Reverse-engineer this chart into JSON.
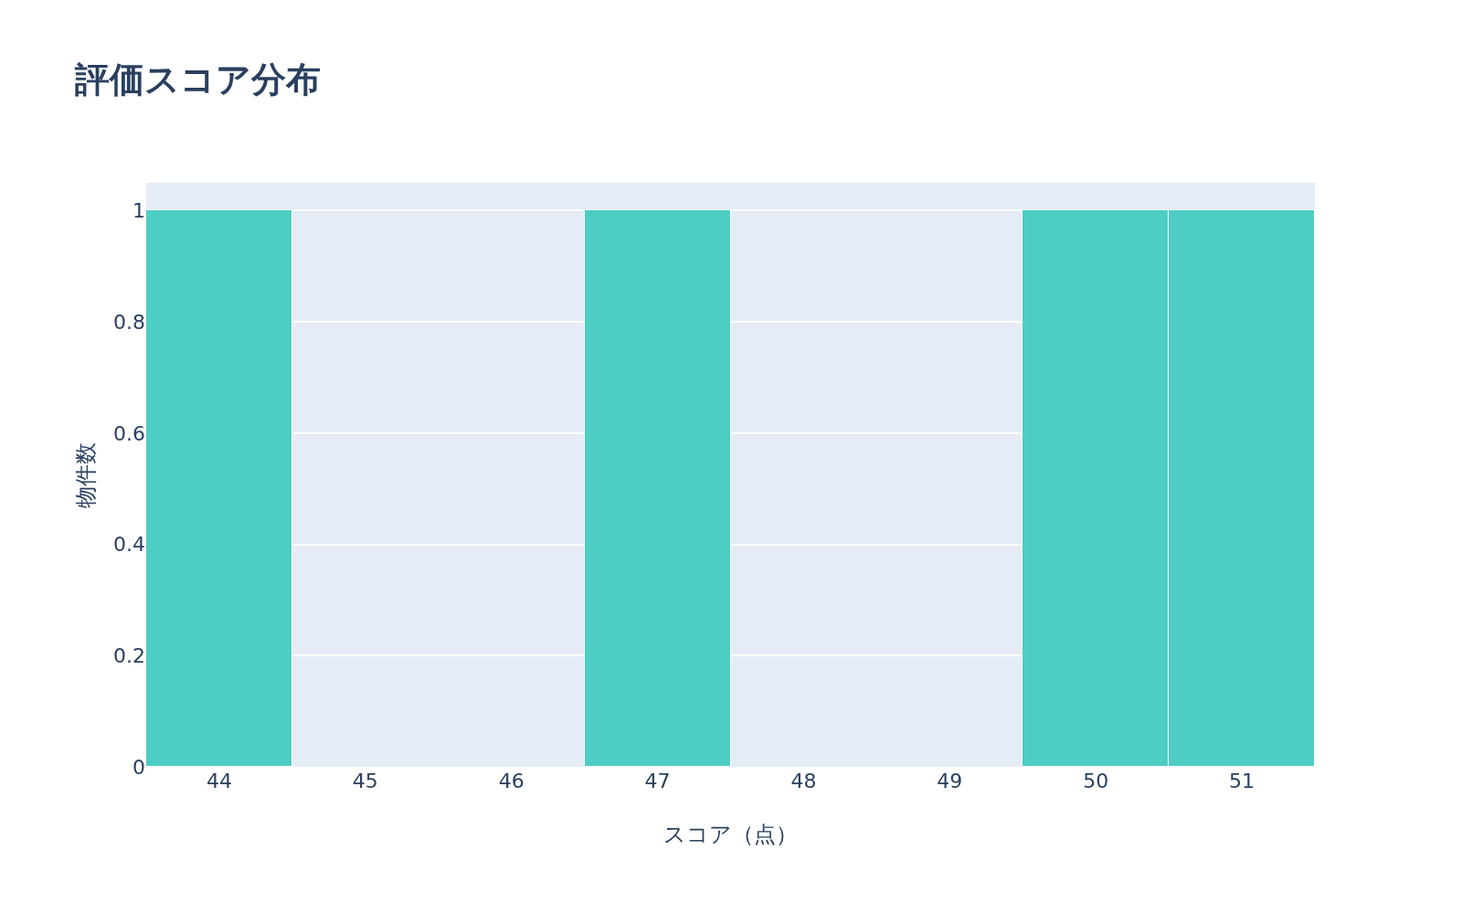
{
  "chart_data": {
    "type": "histogram",
    "title": "評価スコア分布",
    "xlabel": "スコア（点）",
    "ylabel": "物件数",
    "bins": [
      43.5,
      44.5,
      45.5,
      46.5,
      47.5,
      48.5,
      49.5,
      50.5,
      51.5
    ],
    "values": [
      1,
      0,
      0,
      1,
      0,
      0,
      1,
      1
    ],
    "color": "#4ecdc4",
    "xlim": [
      43.5,
      51.5
    ],
    "xticks": [
      44,
      45,
      46,
      47,
      48,
      49,
      50,
      51
    ],
    "ylim": [
      0,
      1.05
    ],
    "yticks": [
      0,
      0.2,
      0.4,
      0.6,
      0.8,
      1
    ],
    "grid": "y"
  }
}
